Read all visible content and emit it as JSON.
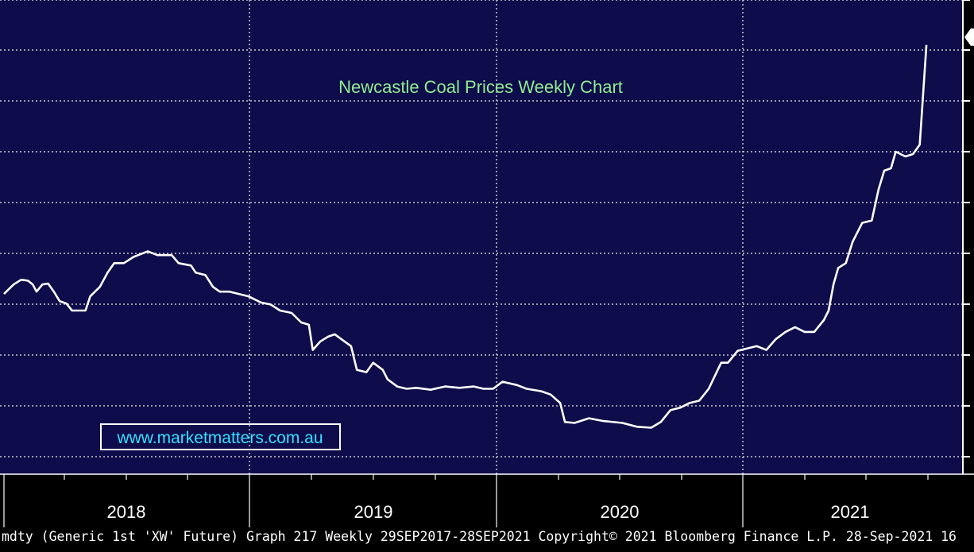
{
  "colors": {
    "plot_background": "#0e0c4a",
    "axis_background": "#000000",
    "gridline": "#c8c8c8",
    "series_line": "#ffffff",
    "title": "#90ee90",
    "watermark": "#33e0ff",
    "footer_text": "#ffffff"
  },
  "watermark": "www.marketmatters.com.au",
  "footer": "mdty (Generic 1st 'XW' Future) Graph 217  Weekly 29SEP2017-28SEP2021 Copyright© 2021 Bloomberg Finance L.P. 28-Sep-2021 16",
  "chart_data": {
    "type": "line",
    "title": "Newcastle Coal Prices Weekly Chart",
    "xlabel": "",
    "ylabel": "",
    "x_range": [
      "2017-09-29",
      "2021-09-28"
    ],
    "x_ticks": [
      "2018",
      "2019",
      "2020",
      "2021"
    ],
    "grid": true,
    "legend": "none",
    "series": [
      {
        "values": [
          [
            0.0,
            0.38
          ],
          [
            0.01,
            0.4
          ],
          [
            0.018,
            0.41
          ],
          [
            0.025,
            0.408
          ],
          [
            0.03,
            0.4
          ],
          [
            0.034,
            0.385
          ],
          [
            0.04,
            0.4
          ],
          [
            0.046,
            0.402
          ],
          [
            0.052,
            0.385
          ],
          [
            0.058,
            0.365
          ],
          [
            0.065,
            0.36
          ],
          [
            0.071,
            0.345
          ],
          [
            0.085,
            0.345
          ],
          [
            0.09,
            0.375
          ],
          [
            0.1,
            0.395
          ],
          [
            0.108,
            0.425
          ],
          [
            0.115,
            0.445
          ],
          [
            0.125,
            0.445
          ],
          [
            0.135,
            0.458
          ],
          [
            0.15,
            0.47
          ],
          [
            0.16,
            0.462
          ],
          [
            0.175,
            0.462
          ],
          [
            0.182,
            0.445
          ],
          [
            0.195,
            0.44
          ],
          [
            0.2,
            0.425
          ],
          [
            0.21,
            0.42
          ],
          [
            0.218,
            0.395
          ],
          [
            0.225,
            0.385
          ],
          [
            0.235,
            0.385
          ],
          [
            0.245,
            0.38
          ],
          [
            0.255,
            0.375
          ],
          [
            0.268,
            0.362
          ],
          [
            0.278,
            0.358
          ],
          [
            0.288,
            0.345
          ],
          [
            0.3,
            0.34
          ],
          [
            0.31,
            0.32
          ],
          [
            0.318,
            0.315
          ],
          [
            0.322,
            0.262
          ],
          [
            0.33,
            0.28
          ],
          [
            0.338,
            0.29
          ],
          [
            0.345,
            0.295
          ],
          [
            0.355,
            0.28
          ],
          [
            0.362,
            0.27
          ],
          [
            0.368,
            0.22
          ],
          [
            0.378,
            0.215
          ],
          [
            0.385,
            0.235
          ],
          [
            0.395,
            0.22
          ],
          [
            0.4,
            0.2
          ],
          [
            0.41,
            0.185
          ],
          [
            0.42,
            0.18
          ],
          [
            0.43,
            0.182
          ],
          [
            0.445,
            0.178
          ],
          [
            0.46,
            0.185
          ],
          [
            0.475,
            0.182
          ],
          [
            0.49,
            0.185
          ],
          [
            0.5,
            0.18
          ],
          [
            0.51,
            0.18
          ],
          [
            0.52,
            0.195
          ],
          [
            0.535,
            0.188
          ],
          [
            0.545,
            0.18
          ],
          [
            0.56,
            0.175
          ],
          [
            0.57,
            0.168
          ],
          [
            0.58,
            0.15
          ],
          [
            0.585,
            0.11
          ],
          [
            0.595,
            0.108
          ],
          [
            0.61,
            0.118
          ],
          [
            0.625,
            0.112
          ],
          [
            0.645,
            0.108
          ],
          [
            0.66,
            0.1
          ],
          [
            0.675,
            0.098
          ],
          [
            0.685,
            0.11
          ],
          [
            0.695,
            0.135
          ],
          [
            0.705,
            0.14
          ],
          [
            0.715,
            0.15
          ],
          [
            0.725,
            0.155
          ],
          [
            0.735,
            0.18
          ],
          [
            0.742,
            0.21
          ],
          [
            0.748,
            0.235
          ],
          [
            0.755,
            0.235
          ],
          [
            0.765,
            0.26
          ],
          [
            0.775,
            0.265
          ],
          [
            0.785,
            0.27
          ],
          [
            0.795,
            0.262
          ],
          [
            0.805,
            0.285
          ],
          [
            0.815,
            0.3
          ],
          [
            0.825,
            0.31
          ],
          [
            0.835,
            0.3
          ],
          [
            0.845,
            0.3
          ],
          [
            0.855,
            0.325
          ],
          [
            0.86,
            0.345
          ],
          [
            0.865,
            0.4
          ],
          [
            0.87,
            0.435
          ],
          [
            0.878,
            0.445
          ],
          [
            0.885,
            0.49
          ],
          [
            0.895,
            0.53
          ],
          [
            0.905,
            0.535
          ],
          [
            0.912,
            0.6
          ],
          [
            0.918,
            0.64
          ],
          [
            0.925,
            0.645
          ],
          [
            0.93,
            0.68
          ],
          [
            0.94,
            0.67
          ],
          [
            0.948,
            0.675
          ],
          [
            0.955,
            0.695
          ],
          [
            0.962,
            0.905
          ]
        ]
      }
    ]
  }
}
